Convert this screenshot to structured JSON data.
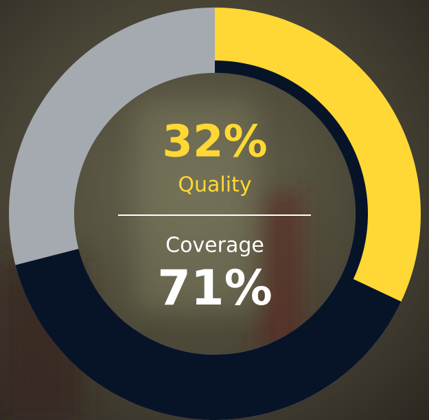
{
  "chart_data": {
    "type": "donut",
    "categories": [
      "Quality",
      "Coverage"
    ],
    "values": [
      32,
      71
    ],
    "value_labels": [
      "32%",
      "71%"
    ],
    "colors": [
      "#ffd835",
      "#071428"
    ],
    "remainder_color": "#a5aab0"
  }
}
